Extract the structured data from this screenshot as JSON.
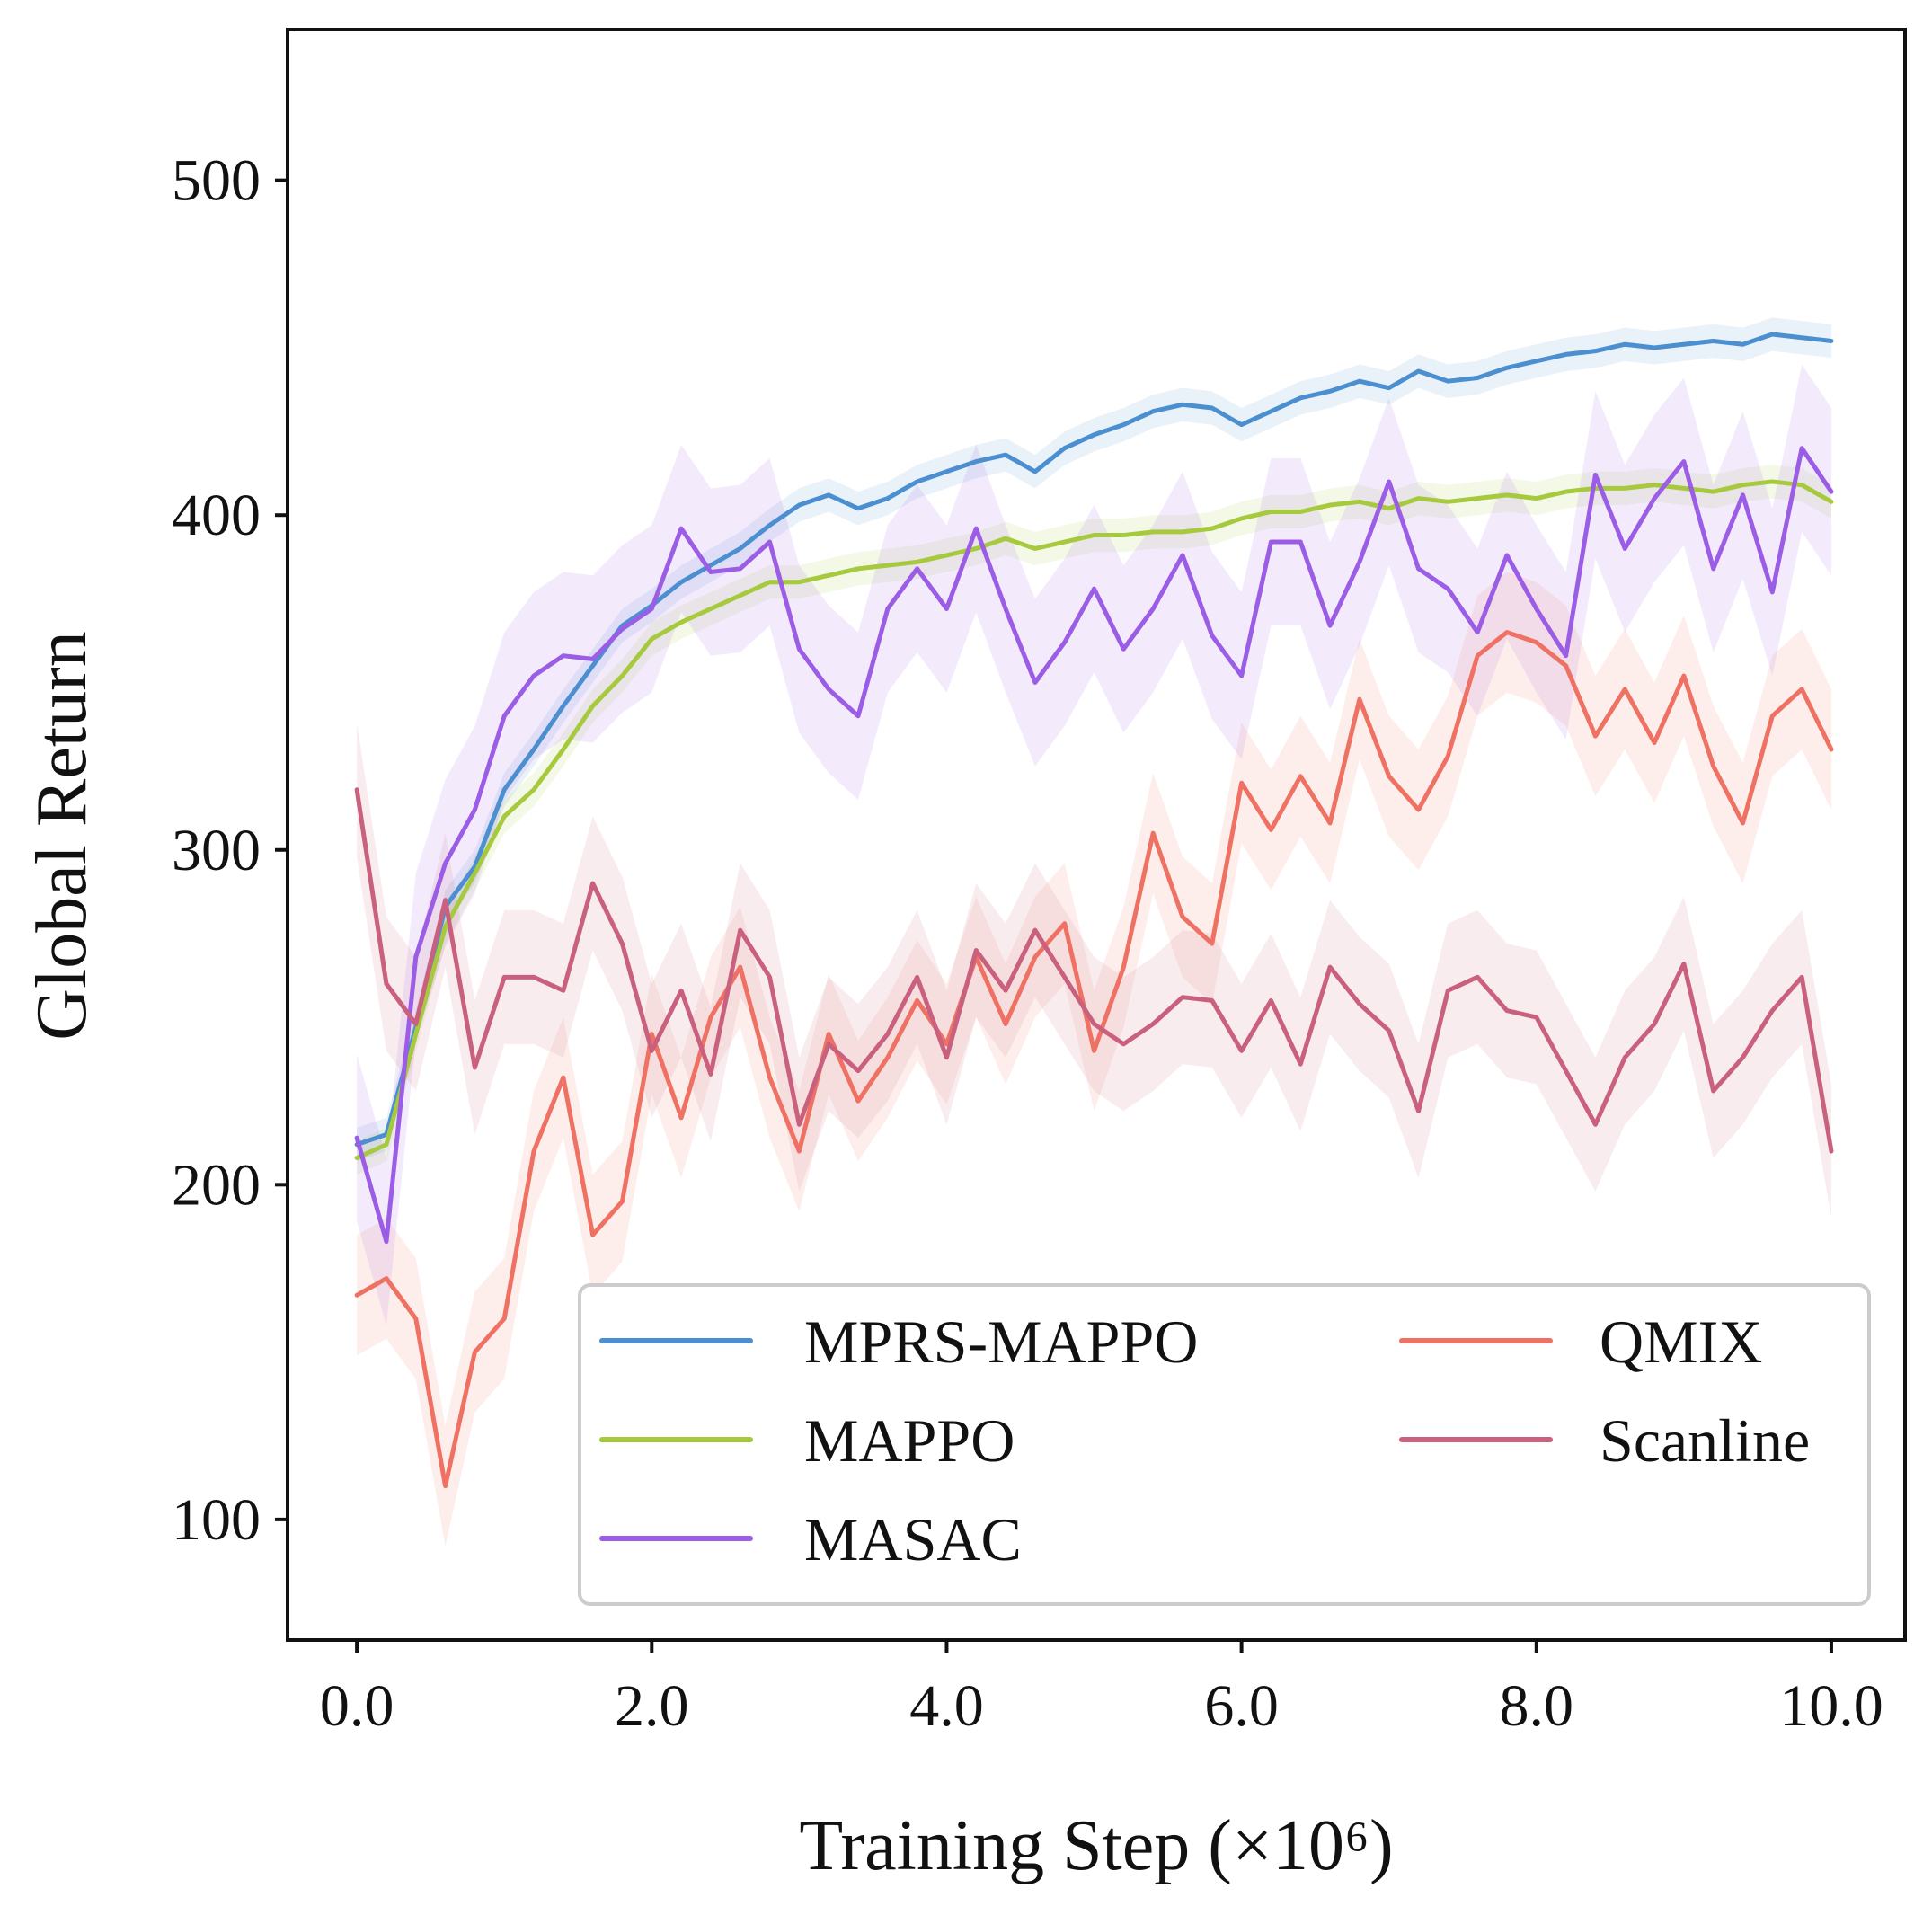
{
  "chart_data": {
    "type": "line",
    "title": "",
    "xlabel": "Training Step",
    "xlabel_unit": "(×10⁶)",
    "ylabel": "Global Return",
    "xlim": [
      -0.47,
      10.5
    ],
    "ylim": [
      64,
      545
    ],
    "xticks": [
      0.0,
      2.0,
      4.0,
      6.0,
      8.0,
      10.0
    ],
    "xtick_labels": [
      "0.0",
      "2.0",
      "4.0",
      "6.0",
      "8.0",
      "10.0"
    ],
    "yticks": [
      100,
      200,
      300,
      400,
      500
    ],
    "ytick_labels": [
      "100",
      "200",
      "300",
      "400",
      "500"
    ],
    "grid": false,
    "legend_position": "bottom-right",
    "legend_columns": 2,
    "shaded_band": true,
    "series": [
      {
        "name": "MPRS-MAPPO",
        "color": "#4b8fd1",
        "x": [
          0,
          0.2,
          0.4,
          0.6,
          0.8,
          1.0,
          1.2,
          1.4,
          1.6,
          1.8,
          2.0,
          2.2,
          2.4,
          2.6,
          2.8,
          3.0,
          3.2,
          3.4,
          3.6,
          3.8,
          4.0,
          4.2,
          4.4,
          4.6,
          4.8,
          5.0,
          5.2,
          5.4,
          5.6,
          5.8,
          6.0,
          6.2,
          6.4,
          6.6,
          6.8,
          7.0,
          7.2,
          7.4,
          7.6,
          7.8,
          8.0,
          8.2,
          8.4,
          8.6,
          8.8,
          9.0,
          9.2,
          9.4,
          9.6,
          9.8,
          10.0
        ],
        "y": [
          212,
          215,
          247,
          283,
          295,
          318,
          330,
          343,
          355,
          367,
          373,
          380,
          385,
          390,
          397,
          403,
          406,
          402,
          405,
          410,
          413,
          416,
          418,
          413,
          420,
          424,
          427,
          431,
          433,
          432,
          427,
          431,
          435,
          437,
          440,
          438,
          443,
          440,
          441,
          444,
          446,
          448,
          449,
          451,
          450,
          451,
          452,
          451,
          454,
          453,
          452
        ],
        "band": 5
      },
      {
        "name": "MAPPO",
        "color": "#a6c93d",
        "x": [
          0,
          0.2,
          0.4,
          0.6,
          0.8,
          1.0,
          1.2,
          1.4,
          1.6,
          1.8,
          2.0,
          2.2,
          2.4,
          2.6,
          2.8,
          3.0,
          3.2,
          3.4,
          3.6,
          3.8,
          4.0,
          4.2,
          4.4,
          4.6,
          4.8,
          5.0,
          5.2,
          5.4,
          5.6,
          5.8,
          6.0,
          6.2,
          6.4,
          6.6,
          6.8,
          7.0,
          7.2,
          7.4,
          7.6,
          7.8,
          8.0,
          8.2,
          8.4,
          8.6,
          8.8,
          9.0,
          9.2,
          9.4,
          9.6,
          9.8,
          10.0
        ],
        "y": [
          208,
          212,
          245,
          277,
          293,
          310,
          318,
          330,
          343,
          352,
          363,
          368,
          372,
          376,
          380,
          380,
          382,
          384,
          385,
          386,
          388,
          390,
          393,
          390,
          392,
          394,
          394,
          395,
          395,
          396,
          399,
          401,
          401,
          403,
          404,
          402,
          405,
          404,
          405,
          406,
          405,
          407,
          408,
          408,
          409,
          408,
          407,
          409,
          410,
          409,
          404
        ],
        "band": 5
      },
      {
        "name": "MASAC",
        "color": "#9b5de5",
        "x": [
          0,
          0.2,
          0.4,
          0.6,
          0.8,
          1.0,
          1.2,
          1.4,
          1.6,
          1.8,
          2.0,
          2.2,
          2.4,
          2.6,
          2.8,
          3.0,
          3.2,
          3.4,
          3.6,
          3.8,
          4.0,
          4.2,
          4.4,
          4.6,
          4.8,
          5.0,
          5.2,
          5.4,
          5.6,
          5.8,
          6.0,
          6.2,
          6.4,
          6.6,
          6.8,
          7.0,
          7.2,
          7.4,
          7.6,
          7.8,
          8.0,
          8.2,
          8.4,
          8.6,
          8.8,
          9.0,
          9.2,
          9.4,
          9.6,
          9.8,
          10.0
        ],
        "y": [
          214,
          183,
          268,
          296,
          312,
          340,
          352,
          358,
          357,
          366,
          372,
          396,
          383,
          384,
          392,
          360,
          348,
          340,
          372,
          384,
          372,
          396,
          372,
          350,
          362,
          378,
          360,
          372,
          388,
          364,
          352,
          392,
          392,
          367,
          386,
          410,
          384,
          378,
          365,
          388,
          372,
          358,
          412,
          390,
          405,
          416,
          384,
          406,
          377,
          420,
          407
        ],
        "band": 25
      },
      {
        "name": "QMIX",
        "color": "#ee7163",
        "x": [
          0,
          0.2,
          0.4,
          0.6,
          0.8,
          1.0,
          1.2,
          1.4,
          1.6,
          1.8,
          2.0,
          2.2,
          2.4,
          2.6,
          2.8,
          3.0,
          3.2,
          3.4,
          3.6,
          3.8,
          4.0,
          4.2,
          4.4,
          4.6,
          4.8,
          5.0,
          5.2,
          5.4,
          5.6,
          5.8,
          6.0,
          6.2,
          6.4,
          6.6,
          6.8,
          7.0,
          7.2,
          7.4,
          7.6,
          7.8,
          8.0,
          8.2,
          8.4,
          8.6,
          8.8,
          9.0,
          9.2,
          9.4,
          9.6,
          9.8,
          10.0
        ],
        "y": [
          167,
          172,
          160,
          110,
          150,
          160,
          210,
          232,
          185,
          195,
          245,
          220,
          250,
          265,
          232,
          210,
          245,
          225,
          238,
          255,
          242,
          268,
          248,
          268,
          278,
          240,
          265,
          305,
          280,
          272,
          320,
          306,
          322,
          308,
          345,
          322,
          312,
          328,
          358,
          365,
          362,
          355,
          334,
          348,
          332,
          352,
          325,
          308,
          340,
          348,
          330
        ],
        "band": 18
      },
      {
        "name": "Scanline",
        "color": "#c9607e",
        "x": [
          0,
          0.2,
          0.4,
          0.6,
          0.8,
          1.0,
          1.2,
          1.4,
          1.6,
          1.8,
          2.0,
          2.2,
          2.4,
          2.6,
          2.8,
          3.0,
          3.2,
          3.4,
          3.6,
          3.8,
          4.0,
          4.2,
          4.4,
          4.6,
          4.8,
          5.0,
          5.2,
          5.4,
          5.6,
          5.8,
          6.0,
          6.2,
          6.4,
          6.6,
          6.8,
          7.0,
          7.2,
          7.4,
          7.6,
          7.8,
          8.0,
          8.2,
          8.4,
          8.6,
          8.8,
          9.0,
          9.2,
          9.4,
          9.6,
          9.8,
          10.0
        ],
        "y": [
          318,
          260,
          248,
          285,
          235,
          262,
          262,
          258,
          290,
          272,
          240,
          258,
          233,
          276,
          262,
          218,
          242,
          234,
          245,
          262,
          238,
          270,
          258,
          276,
          262,
          248,
          242,
          248,
          256,
          255,
          240,
          255,
          236,
          265,
          254,
          246,
          222,
          258,
          262,
          252,
          250,
          234,
          218,
          238,
          248,
          266,
          228,
          238,
          252,
          262,
          210
        ],
        "band": 20
      }
    ]
  }
}
